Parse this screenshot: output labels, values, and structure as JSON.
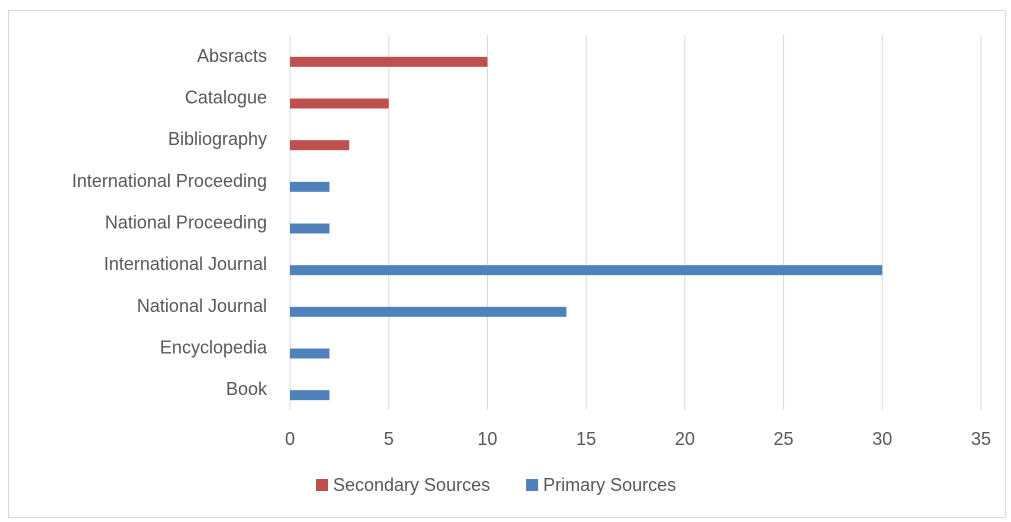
{
  "chart_data": {
    "type": "bar",
    "orientation": "horizontal",
    "categories": [
      "Book",
      "Encyclopedia",
      "National Journal",
      "International Journal",
      "National Proceeding",
      "International Proceeding",
      "Bibliography",
      "Catalogue",
      "Absracts"
    ],
    "series": [
      {
        "name": "Primary Sources",
        "color": "#4f81bd",
        "values": [
          2,
          2,
          14,
          30,
          2,
          2,
          0,
          0,
          0
        ]
      },
      {
        "name": "Secondary Sources",
        "color": "#c0504d",
        "values": [
          0,
          0,
          0,
          0,
          0,
          0,
          3,
          5,
          10
        ]
      }
    ],
    "xlim": [
      0,
      35
    ],
    "xticks": [
      0,
      5,
      10,
      15,
      20,
      25,
      30,
      35
    ],
    "grid": true,
    "legend": {
      "position": "bottom",
      "order": [
        "Secondary Sources",
        "Primary Sources"
      ]
    }
  }
}
